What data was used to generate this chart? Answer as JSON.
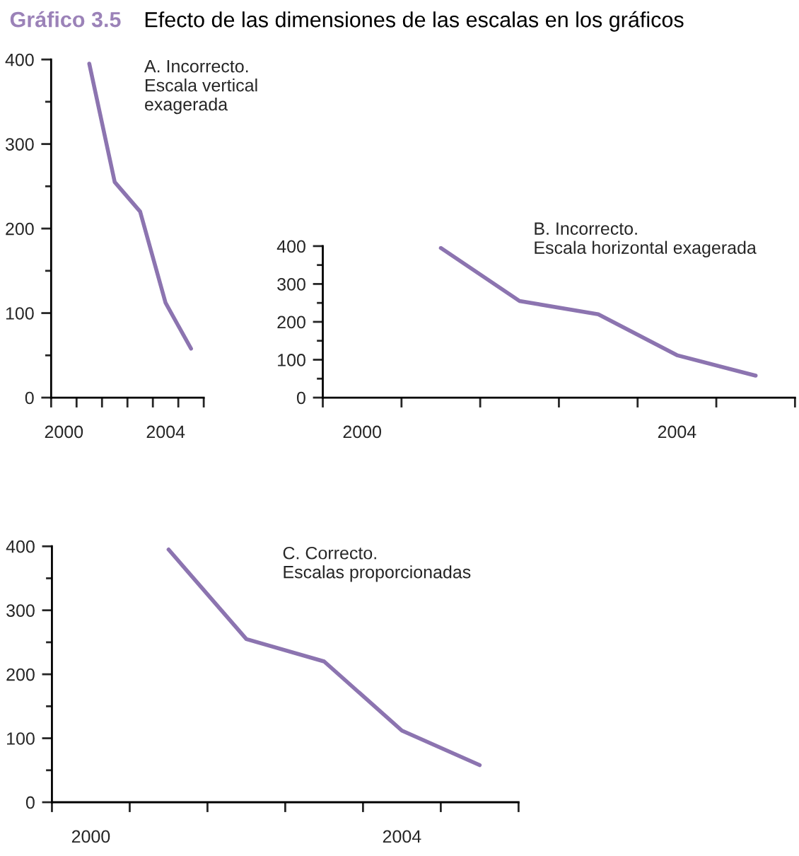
{
  "chart_data": [
    {
      "type": "line",
      "title": "Gráfico 3.5",
      "subtitle": "Efecto de las dimensiones de las escalas en los gráficos",
      "annotations": [
        "A. Incorrecto.\nEscala vertical\nexagerada"
      ],
      "x": [
        2001,
        2002,
        2003,
        2004,
        2005
      ],
      "series": [
        {
          "color": "#8c74b0",
          "values": [
            395,
            255,
            220,
            112,
            58
          ]
        }
      ],
      "xlim": [
        1999.5,
        2005.5
      ],
      "xticks": [
        {
          "value": 1999.5,
          "label": null
        },
        {
          "value": 2000,
          "label": "2000"
        },
        {
          "value": 2000.5,
          "label": null
        },
        {
          "value": 2001.5,
          "label": null
        },
        {
          "value": 2002.5,
          "label": null
        },
        {
          "value": 2003.5,
          "label": null
        },
        {
          "value": 2004,
          "label": "2004"
        },
        {
          "value": 2004.5,
          "label": null
        },
        {
          "value": 2005.5,
          "label": null
        }
      ],
      "ylim": [
        0,
        400
      ],
      "yticks": [
        0,
        {
          "value": 50,
          "label": null
        },
        100,
        {
          "value": 150,
          "label": null
        },
        200,
        {
          "value": 250,
          "label": null
        },
        300,
        {
          "value": 350,
          "label": null
        },
        400
      ],
      "grid": false,
      "legend": false,
      "marker": "none",
      "line_style": "solid"
    },
    {
      "type": "line",
      "annotations": [
        "B. Incorrecto.\nEscala horizontal exagerada"
      ],
      "x": [
        2001,
        2002,
        2003,
        2004,
        2005
      ],
      "series": [
        {
          "color": "#8c74b0",
          "values": [
            395,
            255,
            220,
            112,
            58
          ]
        }
      ],
      "xlim": [
        1999.5,
        2005.5
      ],
      "xticks": [
        {
          "value": 1999.5,
          "label": null
        },
        {
          "value": 2000,
          "label": "2000"
        },
        {
          "value": 2000.5,
          "label": null
        },
        {
          "value": 2001.5,
          "label": null
        },
        {
          "value": 2002.5,
          "label": null
        },
        {
          "value": 2003.5,
          "label": null
        },
        {
          "value": 2004,
          "label": "2004"
        },
        {
          "value": 2004.5,
          "label": null
        },
        {
          "value": 2005.5,
          "label": null
        }
      ],
      "ylim": [
        0,
        400
      ],
      "yticks": [
        0,
        {
          "value": 50,
          "label": null
        },
        100,
        {
          "value": 150,
          "label": null
        },
        200,
        {
          "value": 250,
          "label": null
        },
        300,
        {
          "value": 350,
          "label": null
        },
        400
      ],
      "grid": false,
      "legend": false,
      "marker": "none",
      "line_style": "solid"
    },
    {
      "type": "line",
      "annotations": [
        "C. Correcto.\nEscalas proporcionadas"
      ],
      "x": [
        2001,
        2002,
        2003,
        2004,
        2005
      ],
      "series": [
        {
          "color": "#8c74b0",
          "values": [
            395,
            255,
            220,
            112,
            58
          ]
        }
      ],
      "xlim": [
        1999.5,
        2005.5
      ],
      "xticks": [
        {
          "value": 1999.5,
          "label": null
        },
        {
          "value": 2000,
          "label": "2000"
        },
        {
          "value": 2000.5,
          "label": null
        },
        {
          "value": 2001.5,
          "label": null
        },
        {
          "value": 2002.5,
          "label": null
        },
        {
          "value": 2003.5,
          "label": null
        },
        {
          "value": 2004,
          "label": "2004"
        },
        {
          "value": 2004.5,
          "label": null
        },
        {
          "value": 2005.5,
          "label": null
        }
      ],
      "ylim": [
        0,
        400
      ],
      "yticks": [
        0,
        {
          "value": 50,
          "label": null
        },
        100,
        {
          "value": 150,
          "label": null
        },
        200,
        {
          "value": 250,
          "label": null
        },
        300,
        {
          "value": 350,
          "label": null
        },
        400
      ],
      "grid": false,
      "legend": false,
      "marker": "none",
      "line_style": "solid"
    }
  ]
}
